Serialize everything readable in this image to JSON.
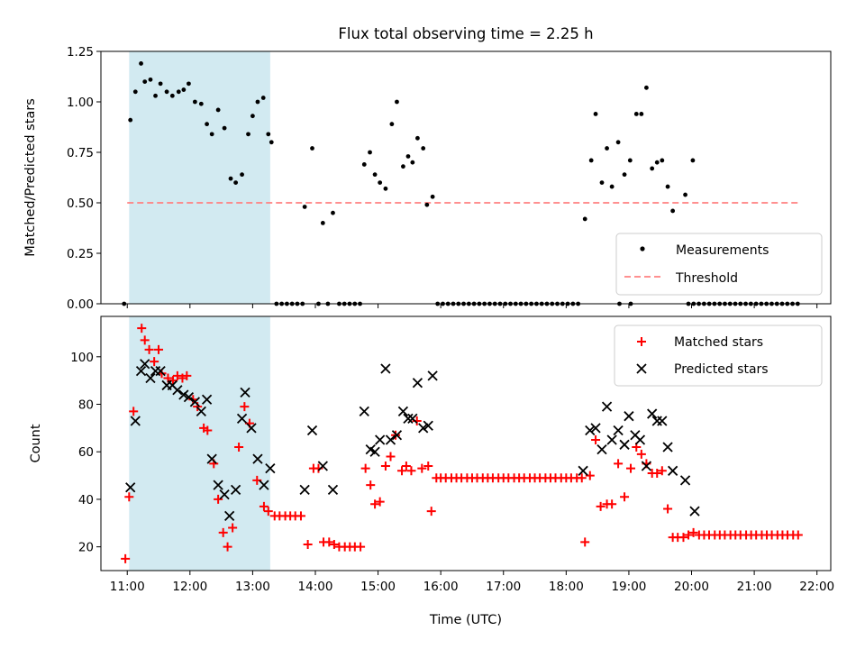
{
  "title": "Flux total observing time = 2.25 h",
  "colors": {
    "shade": "#add8e6",
    "threshold": "#ff8080",
    "measurements": "#000000",
    "matched": "#ff0000",
    "predicted": "#000000"
  },
  "chart_data": [
    {
      "type": "scatter",
      "ylabel": "Matched/Predicted stars",
      "ylim": [
        0,
        1.25
      ],
      "yticks": [
        "0.00",
        "0.25",
        "0.50",
        "0.75",
        "1.00",
        "1.25"
      ],
      "xlim": [
        10.58,
        22.22
      ],
      "shaded_interval": [
        11.03,
        13.28
      ],
      "legend_position": "lower-right",
      "threshold": {
        "name": "Threshold",
        "value": 0.5,
        "x_range": [
          11.0,
          21.7
        ]
      },
      "series": [
        {
          "name": "Measurements",
          "x": [
            10.95,
            11.05,
            11.13,
            11.22,
            11.28,
            11.37,
            11.45,
            11.53,
            11.63,
            11.72,
            11.82,
            11.9,
            11.98,
            12.08,
            12.18,
            12.27,
            12.35,
            12.45,
            12.55,
            12.65,
            12.73,
            12.83,
            12.93,
            13.0,
            13.08,
            13.17,
            13.25,
            13.3,
            13.83,
            13.95,
            14.12,
            14.28,
            14.78,
            14.87,
            14.95,
            15.03,
            15.12,
            15.22,
            15.3,
            15.4,
            15.48,
            15.55,
            15.63,
            15.72,
            15.78,
            15.87,
            18.3,
            18.4,
            18.47,
            18.57,
            18.65,
            18.73,
            18.83,
            18.93,
            19.02,
            19.12,
            19.2,
            19.28,
            19.37,
            19.45,
            19.53,
            19.62,
            19.7,
            19.9,
            20.02
          ],
          "y": [
            0.0,
            0.91,
            1.05,
            1.19,
            1.1,
            1.11,
            1.03,
            1.09,
            1.05,
            1.03,
            1.05,
            1.06,
            1.09,
            1.0,
            0.99,
            0.89,
            0.84,
            0.96,
            0.87,
            0.62,
            0.6,
            0.64,
            0.84,
            0.93,
            1.0,
            1.02,
            0.84,
            0.8,
            0.48,
            0.77,
            0.4,
            0.45,
            0.69,
            0.75,
            0.64,
            0.6,
            0.57,
            0.89,
            1.0,
            0.68,
            0.73,
            0.7,
            0.82,
            0.77,
            0.49,
            0.53,
            0.42,
            0.71,
            0.94,
            0.6,
            0.77,
            0.58,
            0.8,
            0.64,
            0.71,
            0.94,
            0.94,
            1.07,
            0.67,
            0.7,
            0.71,
            0.58,
            0.46,
            0.54,
            0.71
          ],
          "zeros_x_ranges": [
            [
              13.38,
              13.8
            ],
            [
              14.05,
              14.05
            ],
            [
              14.2,
              14.2
            ],
            [
              14.38,
              14.72
            ],
            [
              15.95,
              18.2
            ],
            [
              19.95,
              21.72
            ]
          ],
          "zeros_step": 0.083,
          "extra_zeros_x": [
            18.85,
            19.03
          ]
        }
      ]
    },
    {
      "type": "scatter",
      "xlabel": "Time (UTC)",
      "ylabel": "Count",
      "ylim": [
        10,
        117
      ],
      "yticks": [
        "20",
        "40",
        "60",
        "80",
        "100"
      ],
      "xlim": [
        10.58,
        22.22
      ],
      "xticks": [
        "11:00",
        "12:00",
        "13:00",
        "14:00",
        "15:00",
        "16:00",
        "17:00",
        "18:00",
        "19:00",
        "20:00",
        "21:00",
        "22:00"
      ],
      "xtick_values": [
        11,
        12,
        13,
        14,
        15,
        16,
        17,
        18,
        19,
        20,
        21,
        22
      ],
      "shaded_interval": [
        11.03,
        13.28
      ],
      "legend_position": "upper-right",
      "series": [
        {
          "name": "Matched stars",
          "marker": "plus",
          "x": [
            10.97,
            11.03,
            11.1,
            11.23,
            11.28,
            11.35,
            11.43,
            11.5,
            11.55,
            11.65,
            11.73,
            11.8,
            11.88,
            11.95,
            12.05,
            12.12,
            12.22,
            12.28,
            12.38,
            12.45,
            12.53,
            12.6,
            12.68,
            12.78,
            12.87,
            12.95,
            13.07,
            13.18,
            13.25,
            13.35,
            13.43,
            13.52,
            13.6,
            13.68,
            13.77,
            13.88,
            13.97,
            14.05,
            14.13,
            14.22,
            14.3,
            14.38,
            14.47,
            14.55,
            14.63,
            14.72,
            14.8,
            14.88,
            14.95,
            15.03,
            15.12,
            15.2,
            15.28,
            15.38,
            15.45,
            15.53,
            15.62,
            15.7,
            15.8,
            15.85,
            15.93,
            16.0,
            16.08,
            16.17,
            16.25,
            16.33,
            16.42,
            16.5,
            16.58,
            16.67,
            16.75,
            16.83,
            16.92,
            17.0,
            17.08,
            17.17,
            17.25,
            17.33,
            17.42,
            17.5,
            17.58,
            17.67,
            17.75,
            17.83,
            17.92,
            18.0,
            18.08,
            18.17,
            18.25,
            18.3,
            18.38,
            18.47,
            18.55,
            18.65,
            18.73,
            18.83,
            18.93,
            19.03,
            19.12,
            19.2,
            19.28,
            19.37,
            19.45,
            19.53,
            19.62,
            19.7,
            19.78,
            19.87,
            19.95,
            20.03,
            20.12,
            20.2,
            20.28,
            20.37,
            20.45,
            20.53,
            20.62,
            20.7,
            20.78,
            20.87,
            20.95,
            21.03,
            21.12,
            21.2,
            21.28,
            21.37,
            21.45,
            21.53,
            21.62,
            21.7
          ],
          "y": [
            15,
            41,
            77,
            112,
            107,
            103,
            98,
            103,
            93,
            91,
            90,
            92,
            91,
            92,
            82,
            79,
            70,
            69,
            55,
            40,
            26,
            20,
            28,
            62,
            79,
            72,
            48,
            37,
            35,
            33,
            33,
            33,
            33,
            33,
            33,
            21,
            53,
            53,
            22,
            22,
            21,
            20,
            20,
            20,
            20,
            20,
            53,
            46,
            38,
            39,
            54,
            58,
            67,
            52,
            54,
            52,
            73,
            53,
            54,
            35,
            49,
            49,
            49,
            49,
            49,
            49,
            49,
            49,
            49,
            49,
            49,
            49,
            49,
            49,
            49,
            49,
            49,
            49,
            49,
            49,
            49,
            49,
            49,
            49,
            49,
            49,
            49,
            49,
            49,
            22,
            50,
            65,
            37,
            38,
            38,
            55,
            41,
            53,
            62,
            59,
            55,
            51,
            51,
            52,
            36,
            24,
            24,
            24,
            25,
            26,
            25,
            25,
            25,
            25,
            25,
            25,
            25,
            25,
            25,
            25,
            25,
            25,
            25,
            25,
            25,
            25,
            25,
            25,
            25,
            25
          ]
        },
        {
          "name": "Predicted stars",
          "marker": "x",
          "x": [
            11.05,
            11.13,
            11.22,
            11.28,
            11.37,
            11.45,
            11.53,
            11.63,
            11.72,
            11.8,
            11.9,
            11.98,
            12.08,
            12.18,
            12.27,
            12.35,
            12.45,
            12.55,
            12.63,
            12.73,
            12.83,
            12.88,
            12.98,
            13.08,
            13.18,
            13.28,
            13.83,
            13.95,
            14.12,
            14.28,
            14.78,
            14.88,
            14.95,
            15.03,
            15.12,
            15.2,
            15.3,
            15.4,
            15.48,
            15.55,
            15.63,
            15.72,
            15.8,
            15.87,
            18.27,
            18.38,
            18.47,
            18.57,
            18.65,
            18.73,
            18.83,
            18.93,
            19.0,
            19.1,
            19.18,
            19.28,
            19.37,
            19.45,
            19.53,
            19.62,
            19.7,
            19.9,
            20.05
          ],
          "y": [
            45,
            73,
            94,
            97,
            91,
            94,
            94,
            88,
            88,
            86,
            84,
            83,
            81,
            77,
            82,
            57,
            46,
            42,
            33,
            44,
            74,
            85,
            70,
            57,
            46,
            53,
            44,
            69,
            54,
            44,
            77,
            61,
            60,
            65,
            95,
            65,
            67,
            77,
            74,
            74,
            89,
            70,
            71,
            92,
            52,
            69,
            70,
            61,
            79,
            65,
            69,
            63,
            75,
            67,
            65,
            54,
            76,
            73,
            73,
            62,
            52,
            48,
            35
          ]
        }
      ]
    }
  ]
}
